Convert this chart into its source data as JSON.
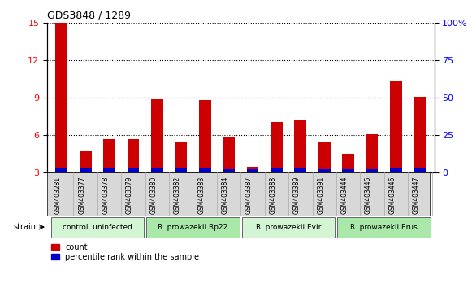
{
  "title": "GDS3848 / 1289",
  "categories": [
    "GSM403281",
    "GSM403377",
    "GSM403378",
    "GSM403379",
    "GSM403380",
    "GSM403382",
    "GSM403383",
    "GSM403384",
    "GSM403387",
    "GSM403388",
    "GSM403389",
    "GSM403391",
    "GSM403444",
    "GSM403445",
    "GSM403446",
    "GSM403447"
  ],
  "count_values": [
    15.0,
    4.8,
    5.7,
    5.7,
    8.9,
    5.5,
    8.8,
    5.9,
    3.5,
    7.1,
    7.2,
    5.5,
    4.5,
    6.1,
    10.4,
    9.1
  ],
  "blue_heights": [
    0.42,
    0.35,
    0.35,
    0.35,
    0.35,
    0.35,
    0.35,
    0.3,
    0.28,
    0.32,
    0.32,
    0.3,
    0.3,
    0.3,
    0.38,
    0.38
  ],
  "ylim_left": [
    3,
    15
  ],
  "ylim_right": [
    0,
    100
  ],
  "yticks_left": [
    3,
    6,
    9,
    12,
    15
  ],
  "yticks_right": [
    0,
    25,
    50,
    75,
    100
  ],
  "ytick_labels_right": [
    "0",
    "25",
    "50",
    "75",
    "100%"
  ],
  "groups": [
    {
      "label": "control, uninfected",
      "start": 0,
      "end": 4
    },
    {
      "label": "R. prowazekii Rp22",
      "start": 4,
      "end": 8
    },
    {
      "label": "R. prowazekii Evir",
      "start": 8,
      "end": 12
    },
    {
      "label": "R. prowazekii Erus",
      "start": 12,
      "end": 16
    }
  ],
  "group_colors": [
    "#d4f5d4",
    "#aae8aa",
    "#d4f5d4",
    "#aae8aa"
  ],
  "bar_color_red": "#cc0000",
  "bar_color_blue": "#0000cc",
  "bar_width": 0.5,
  "strain_label": "strain",
  "legend_count": "count",
  "legend_percentile": "percentile rank within the sample"
}
